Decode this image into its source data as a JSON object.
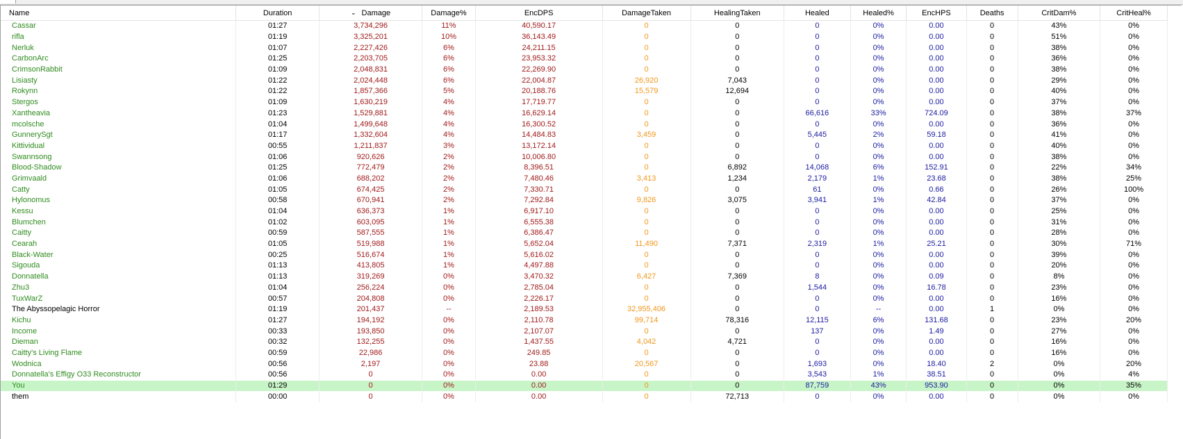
{
  "columns": [
    "Name",
    "Duration",
    "Damage",
    "Damage%",
    "EncDPS",
    "DamageTaken",
    "HealingTaken",
    "Healed",
    "Healed%",
    "EncHPS",
    "Deaths",
    "CritDam%",
    "CritHeal%"
  ],
  "sort_column": "Damage",
  "colors": {
    "ally_name": "#2e8b1e",
    "enemy_name": "#000000",
    "damage": "#a01a1a",
    "damage_taken": "#f0961a",
    "healed": "#1a1aa0",
    "highlight_row": "#c8f5c8"
  },
  "rows": [
    [
      "Cassar",
      "01:27",
      "3,734,296",
      "11%",
      "40,590.17",
      "0",
      "0",
      "0",
      "0%",
      "0.00",
      "0",
      "43%",
      "0%"
    ],
    [
      "rifla",
      "01:19",
      "3,325,201",
      "10%",
      "36,143.49",
      "0",
      "0",
      "0",
      "0%",
      "0.00",
      "0",
      "51%",
      "0%"
    ],
    [
      "Nerluk",
      "01:07",
      "2,227,426",
      "6%",
      "24,211.15",
      "0",
      "0",
      "0",
      "0%",
      "0.00",
      "0",
      "38%",
      "0%"
    ],
    [
      "CarbonArc",
      "01:25",
      "2,203,705",
      "6%",
      "23,953.32",
      "0",
      "0",
      "0",
      "0%",
      "0.00",
      "0",
      "36%",
      "0%"
    ],
    [
      "CrimsonRabbit",
      "01:09",
      "2,048,831",
      "6%",
      "22,269.90",
      "0",
      "0",
      "0",
      "0%",
      "0.00",
      "0",
      "38%",
      "0%"
    ],
    [
      "Lisiasty",
      "01:22",
      "2,024,448",
      "6%",
      "22,004.87",
      "26,920",
      "7,043",
      "0",
      "0%",
      "0.00",
      "0",
      "29%",
      "0%"
    ],
    [
      "Rokynn",
      "01:22",
      "1,857,366",
      "5%",
      "20,188.76",
      "15,579",
      "12,694",
      "0",
      "0%",
      "0.00",
      "0",
      "40%",
      "0%"
    ],
    [
      "Stergos",
      "01:09",
      "1,630,219",
      "4%",
      "17,719.77",
      "0",
      "0",
      "0",
      "0%",
      "0.00",
      "0",
      "37%",
      "0%"
    ],
    [
      "Xantheavia",
      "01:23",
      "1,529,881",
      "4%",
      "16,629.14",
      "0",
      "0",
      "66,616",
      "33%",
      "724.09",
      "0",
      "38%",
      "37%"
    ],
    [
      "mcolsche",
      "01:04",
      "1,499,648",
      "4%",
      "16,300.52",
      "0",
      "0",
      "0",
      "0%",
      "0.00",
      "0",
      "36%",
      "0%"
    ],
    [
      "GunnerySgt",
      "01:17",
      "1,332,604",
      "4%",
      "14,484.83",
      "3,459",
      "0",
      "5,445",
      "2%",
      "59.18",
      "0",
      "41%",
      "0%"
    ],
    [
      "Kittividual",
      "00:55",
      "1,211,837",
      "3%",
      "13,172.14",
      "0",
      "0",
      "0",
      "0%",
      "0.00",
      "0",
      "40%",
      "0%"
    ],
    [
      "Swannsong",
      "01:06",
      "920,626",
      "2%",
      "10,006.80",
      "0",
      "0",
      "0",
      "0%",
      "0.00",
      "0",
      "38%",
      "0%"
    ],
    [
      "Blood-Shadow",
      "01:25",
      "772,479",
      "2%",
      "8,396.51",
      "0",
      "6,892",
      "14,068",
      "6%",
      "152.91",
      "0",
      "22%",
      "34%"
    ],
    [
      "Grimvaald",
      "01:06",
      "688,202",
      "2%",
      "7,480.46",
      "3,413",
      "1,234",
      "2,179",
      "1%",
      "23.68",
      "0",
      "38%",
      "25%"
    ],
    [
      "Catty",
      "01:05",
      "674,425",
      "2%",
      "7,330.71",
      "0",
      "0",
      "61",
      "0%",
      "0.66",
      "0",
      "26%",
      "100%"
    ],
    [
      "Hylonomus",
      "00:58",
      "670,941",
      "2%",
      "7,292.84",
      "9,826",
      "3,075",
      "3,941",
      "1%",
      "42.84",
      "0",
      "37%",
      "0%"
    ],
    [
      "Kessu",
      "01:04",
      "636,373",
      "1%",
      "6,917.10",
      "0",
      "0",
      "0",
      "0%",
      "0.00",
      "0",
      "25%",
      "0%"
    ],
    [
      "Blumchen",
      "01:02",
      "603,095",
      "1%",
      "6,555.38",
      "0",
      "0",
      "0",
      "0%",
      "0.00",
      "0",
      "31%",
      "0%"
    ],
    [
      "Caitty",
      "00:59",
      "587,555",
      "1%",
      "6,386.47",
      "0",
      "0",
      "0",
      "0%",
      "0.00",
      "0",
      "28%",
      "0%"
    ],
    [
      "Cearah",
      "01:05",
      "519,988",
      "1%",
      "5,652.04",
      "11,490",
      "7,371",
      "2,319",
      "1%",
      "25.21",
      "0",
      "30%",
      "71%"
    ],
    [
      "Black-Water",
      "00:25",
      "516,674",
      "1%",
      "5,616.02",
      "0",
      "0",
      "0",
      "0%",
      "0.00",
      "0",
      "39%",
      "0%"
    ],
    [
      "Sigouda",
      "01:13",
      "413,805",
      "1%",
      "4,497.88",
      "0",
      "0",
      "0",
      "0%",
      "0.00",
      "0",
      "20%",
      "0%"
    ],
    [
      "Donnatella",
      "01:13",
      "319,269",
      "0%",
      "3,470.32",
      "6,427",
      "7,369",
      "8",
      "0%",
      "0.09",
      "0",
      "8%",
      "0%"
    ],
    [
      "Zhu3",
      "01:04",
      "256,224",
      "0%",
      "2,785.04",
      "0",
      "0",
      "1,544",
      "0%",
      "16.78",
      "0",
      "23%",
      "0%"
    ],
    [
      "TuxWarZ",
      "00:57",
      "204,808",
      "0%",
      "2,226.17",
      "0",
      "0",
      "0",
      "0%",
      "0.00",
      "0",
      "16%",
      "0%"
    ],
    [
      "The Abyssopelagic Horror",
      "01:19",
      "201,437",
      "--",
      "2,189.53",
      "32,955,406",
      "0",
      "0",
      "--",
      "0.00",
      "1",
      "0%",
      "0%"
    ],
    [
      "Kichu",
      "01:27",
      "194,192",
      "0%",
      "2,110.78",
      "99,714",
      "78,316",
      "12,115",
      "6%",
      "131.68",
      "0",
      "23%",
      "20%"
    ],
    [
      "Income",
      "00:33",
      "193,850",
      "0%",
      "2,107.07",
      "0",
      "0",
      "137",
      "0%",
      "1.49",
      "0",
      "27%",
      "0%"
    ],
    [
      "Dieman",
      "00:32",
      "132,255",
      "0%",
      "1,437.55",
      "4,042",
      "4,721",
      "0",
      "0%",
      "0.00",
      "0",
      "16%",
      "0%"
    ],
    [
      "Caitty's Living Flame",
      "00:59",
      "22,986",
      "0%",
      "249.85",
      "0",
      "0",
      "0",
      "0%",
      "0.00",
      "0",
      "16%",
      "0%"
    ],
    [
      "Wodnica",
      "00:56",
      "2,197",
      "0%",
      "23.88",
      "20,567",
      "0",
      "1,693",
      "0%",
      "18.40",
      "2",
      "0%",
      "20%"
    ],
    [
      "Donnatella's Effigy O33 Reconstructor",
      "00:56",
      "0",
      "0%",
      "0.00",
      "0",
      "0",
      "3,543",
      "1%",
      "38.51",
      "0",
      "0%",
      "4%"
    ],
    [
      "You",
      "01:29",
      "0",
      "0%",
      "0.00",
      "0",
      "0",
      "87,759",
      "43%",
      "953.90",
      "0",
      "0%",
      "35%"
    ],
    [
      "them",
      "00:00",
      "0",
      "0%",
      "0.00",
      "0",
      "72,713",
      "0",
      "0%",
      "0.00",
      "0",
      "0%",
      "0%"
    ]
  ],
  "enemy_rows": [
    "The Abyssopelagic Horror",
    "them"
  ],
  "highlight_rows": [
    "You"
  ]
}
